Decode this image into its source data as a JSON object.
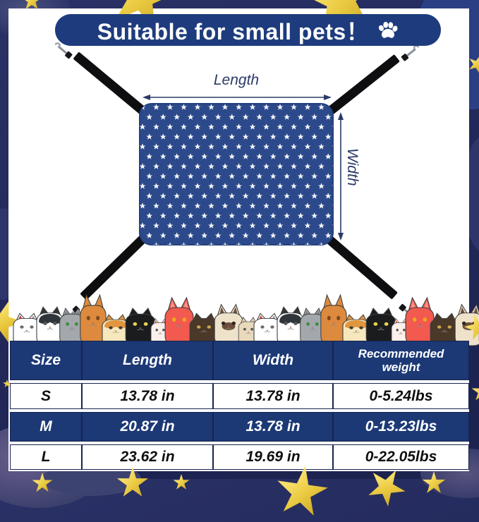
{
  "title": {
    "text": "Suitable for small pets！",
    "paw_icon": "paw-icon"
  },
  "diagram": {
    "length_label": "Length",
    "width_label": "Width",
    "hammock_description": "navy-blue star-pattern pet hammock with four black straps and metal clips"
  },
  "table": {
    "headers": [
      "Size",
      "Length",
      "Width",
      "Recommended weight"
    ],
    "rows": [
      {
        "size": "S",
        "length": "13.78 in",
        "width": "13.78 in",
        "weight": "0-5.24lbs"
      },
      {
        "size": "M",
        "length": "20.87 in",
        "width": "13.78 in",
        "weight": "0-13.23lbs"
      },
      {
        "size": "L",
        "length": "23.62 in",
        "width": "19.69 in",
        "weight": "0-22.05lbs"
      }
    ]
  },
  "colors": {
    "background_navy": "#232a5c",
    "banner_blue": "#1e3c7d",
    "table_blue": "#1c3976",
    "table_border": "#16244e",
    "hammock_blue": "#2c4a8b",
    "annotation_blue": "#2b3a68",
    "strap_black": "#0e0e10",
    "star_gold": "#e9c93f",
    "star_gold_light": "#f7df6a",
    "text_dark": "#0f0f0f"
  },
  "cats": {
    "types": {
      "white-red": {
        "w": 44,
        "h": 50,
        "body": "#ffffff",
        "earL": "#d6392f",
        "earR": "#9aa0a6",
        "eyes": "#6b6b6b"
      },
      "tuxedo": {
        "w": 44,
        "h": 60,
        "body": "#ffffff",
        "patch": "#2f353b",
        "eyes": "#555555"
      },
      "gray": {
        "w": 40,
        "h": 58,
        "body": "#a3a8ad",
        "earL": "#7d8287",
        "earR": "#7d8287",
        "eyes": "#3c8d3f"
      },
      "orange": {
        "w": 42,
        "h": 74,
        "body": "#dd8a3e",
        "tall": true,
        "eyes": "#7a4a1f"
      },
      "cream": {
        "w": 44,
        "h": 48,
        "body": "#f6e8bc",
        "patch": "#e0953f",
        "eyes": "#3a3a3a"
      },
      "black": {
        "w": 48,
        "h": 58,
        "body": "#1b1c1e",
        "eyes": "#e8d44d"
      },
      "white-kitten": {
        "w": 30,
        "h": 42,
        "body": "#fbf0ec",
        "earL": "#e2574c",
        "earR": "#e2574c",
        "eyes": "#555555"
      },
      "red": {
        "w": 46,
        "h": 70,
        "body": "#f25a50",
        "tall": true,
        "earL": "#f9948c",
        "earR": "#f9948c",
        "eyes": "#f0a818"
      },
      "brown": {
        "w": 46,
        "h": 50,
        "body": "#4a3829",
        "eyes": "#c9a84b"
      },
      "siamese": {
        "w": 46,
        "h": 60,
        "body": "#efe2cb",
        "tall": true,
        "earL": "#6b4f3a",
        "earR": "#6b4f3a",
        "muzzle": "#6b4f3a",
        "eyes": "#2e2620"
      },
      "beige-kitten": {
        "w": 32,
        "h": 44,
        "body": "#e9d9bd",
        "earL": "#d9bd97",
        "earR": "#d9bd97",
        "eyes": "#555555"
      }
    },
    "sequence": [
      "white-red",
      "tuxedo",
      "gray",
      "orange",
      "cream",
      "black",
      "white-kitten",
      "red",
      "brown",
      "siamese",
      "beige-kitten",
      "white-red",
      "tuxedo",
      "gray",
      "orange",
      "cream",
      "black",
      "white-kitten",
      "red",
      "brown",
      "siamese",
      "beige-kitten"
    ]
  }
}
